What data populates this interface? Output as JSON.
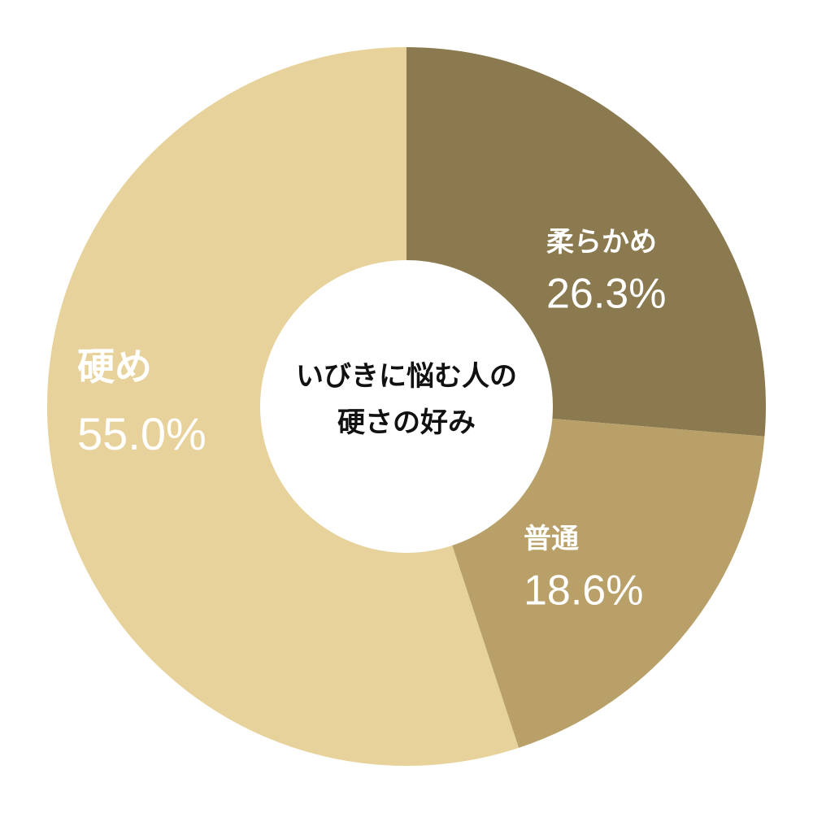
{
  "chart_data": {
    "type": "donut",
    "title": [
      "いびきに悩む人の",
      "硬さの好み"
    ],
    "categories": [
      "柔らかめ",
      "普通",
      "硬め"
    ],
    "values": [
      26.3,
      18.6,
      55.0
    ],
    "value_labels": [
      "26.3%",
      "18.6%",
      "55.0%"
    ],
    "colors": [
      "#8b7a50",
      "#b8a068",
      "#e8d29c"
    ]
  }
}
